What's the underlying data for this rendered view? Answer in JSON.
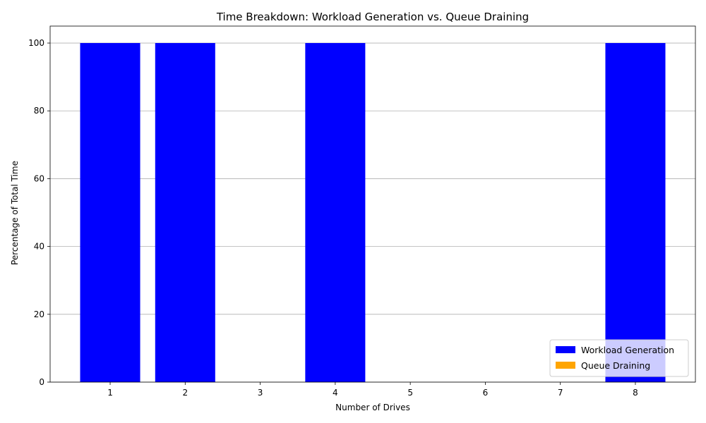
{
  "chart_data": {
    "type": "bar",
    "stacked": true,
    "title": "Time Breakdown: Workload Generation vs. Queue Draining",
    "xlabel": "Number of Drives",
    "ylabel": "Percentage of Total Time",
    "categories": [
      "1",
      "2",
      "3",
      "4",
      "5",
      "6",
      "7",
      "8"
    ],
    "series": [
      {
        "name": "Workload Generation",
        "color": "#0000ff",
        "values": [
          100,
          100,
          0,
          100,
          0,
          0,
          0,
          100
        ]
      },
      {
        "name": "Queue Draining",
        "color": "#ffa500",
        "values": [
          0,
          0,
          0,
          0,
          0,
          0,
          0,
          0
        ]
      }
    ],
    "ylim": [
      0,
      105
    ],
    "yticks": [
      0,
      20,
      40,
      60,
      80,
      100
    ],
    "grid": "y",
    "legend_position": "lower-right"
  }
}
